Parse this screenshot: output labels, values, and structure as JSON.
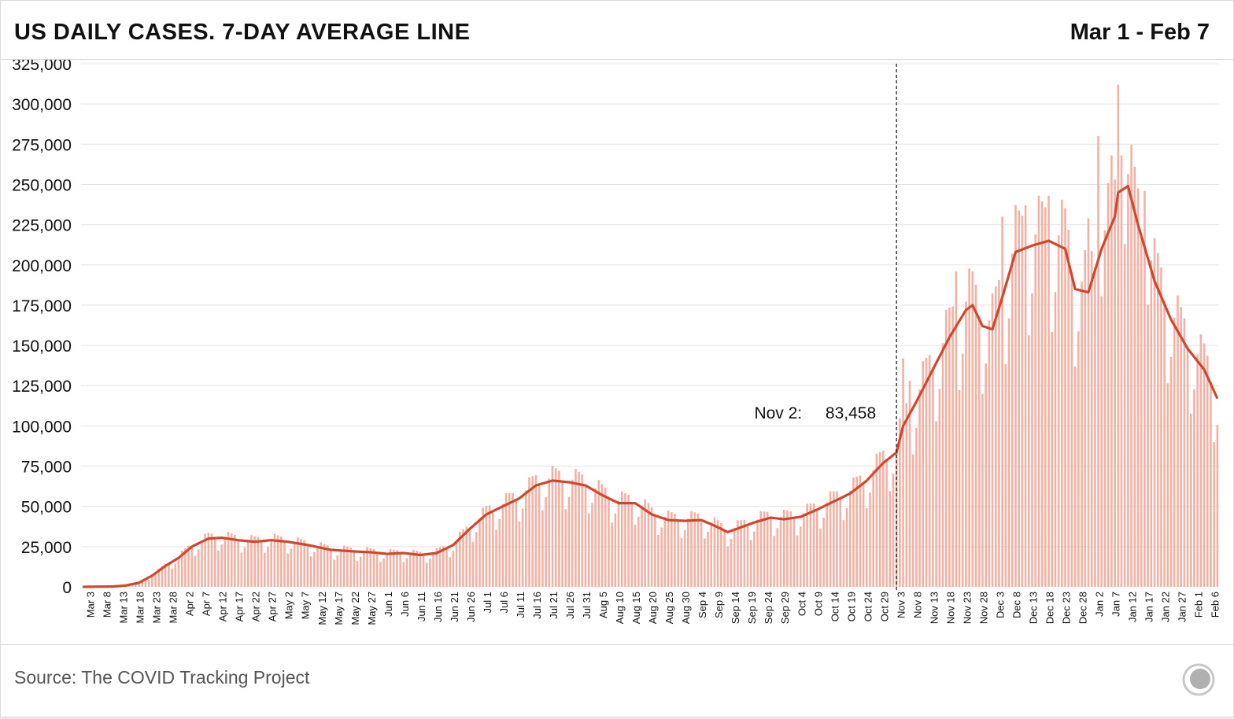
{
  "header": {
    "title": "US DAILY CASES. 7-DAY AVERAGE LINE",
    "range": "Mar 1 - Feb 7"
  },
  "footer": {
    "source": "Source: The COVID Tracking Project",
    "logo_icon": "ctp-logo-icon"
  },
  "colors": {
    "bar": "#f0b2a4",
    "line": "#d0472f",
    "grid": "#e4e4e4",
    "text": "#111111"
  },
  "chart_data": {
    "type": "bar",
    "bar_unit": "daily new cases",
    "line_unit": "7-day average",
    "x_start": "2020-03-01",
    "x_end": "2021-02-07",
    "yticks": [
      "325,000",
      "300,000",
      "275,000",
      "250,000",
      "225,000",
      "200,000",
      "175,000",
      "150,000",
      "125,000",
      "100,000",
      "75,000",
      "50,000",
      "25,000",
      "0"
    ],
    "ylim": [
      0,
      325000
    ],
    "xticks": [
      "Mar 3",
      "Mar 8",
      "Mar 13",
      "Mar 18",
      "Mar 23",
      "Mar 28",
      "Apr 2",
      "Apr 7",
      "Apr 12",
      "Apr 17",
      "Apr 22",
      "Apr 27",
      "May 2",
      "May 7",
      "May 12",
      "May 17",
      "May 22",
      "May 27",
      "Jun 1",
      "Jun 6",
      "Jun 11",
      "Jun 16",
      "Jun 21",
      "Jun 26",
      "Jul 1",
      "Jul 6",
      "Jul 11",
      "Jul 16",
      "Jul 21",
      "Jul 26",
      "Jul 31",
      "Aug 5",
      "Aug 10",
      "Aug 15",
      "Aug 20",
      "Aug 25",
      "Aug 30",
      "Sep 4",
      "Sep 9",
      "Sep 14",
      "Sep 19",
      "Sep 24",
      "Sep 29",
      "Oct 4",
      "Oct 9",
      "Oct 14",
      "Oct 19",
      "Oct 24",
      "Oct 29",
      "Nov 3",
      "Nov 8",
      "Nov 13",
      "Nov 18",
      "Nov 23",
      "Nov 28",
      "Dec 3",
      "Dec 8",
      "Dec 13",
      "Dec 18",
      "Dec 23",
      "Dec 28",
      "Jan 2",
      "Jan 7",
      "Jan 12",
      "Jan 17",
      "Jan 22",
      "Jan 27",
      "Feb 1",
      "Feb 6"
    ],
    "grid": true,
    "annotation": {
      "date": "2020-11-02",
      "label": "Nov 2:",
      "value_label": "83,458",
      "value": 83458,
      "line_style": "dashed"
    },
    "avg_keypoints": [
      [
        "2020-03-01",
        0
      ],
      [
        "2020-03-10",
        200
      ],
      [
        "2020-03-14",
        800
      ],
      [
        "2020-03-18",
        2500
      ],
      [
        "2020-03-22",
        7000
      ],
      [
        "2020-03-26",
        13000
      ],
      [
        "2020-03-30",
        18000
      ],
      [
        "2020-04-03",
        25000
      ],
      [
        "2020-04-08",
        30000
      ],
      [
        "2020-04-12",
        30500
      ],
      [
        "2020-04-17",
        29000
      ],
      [
        "2020-04-22",
        28000
      ],
      [
        "2020-04-27",
        29000
      ],
      [
        "2020-05-02",
        28000
      ],
      [
        "2020-05-08",
        26000
      ],
      [
        "2020-05-15",
        23000
      ],
      [
        "2020-05-22",
        22000
      ],
      [
        "2020-05-27",
        21500
      ],
      [
        "2020-06-01",
        20500
      ],
      [
        "2020-06-06",
        21000
      ],
      [
        "2020-06-11",
        19800
      ],
      [
        "2020-06-16",
        21000
      ],
      [
        "2020-06-21",
        26000
      ],
      [
        "2020-06-26",
        36000
      ],
      [
        "2020-07-01",
        45000
      ],
      [
        "2020-07-06",
        50000
      ],
      [
        "2020-07-11",
        55000
      ],
      [
        "2020-07-16",
        63000
      ],
      [
        "2020-07-21",
        66000
      ],
      [
        "2020-07-26",
        65000
      ],
      [
        "2020-07-31",
        63000
      ],
      [
        "2020-08-05",
        57000
      ],
      [
        "2020-08-10",
        52000
      ],
      [
        "2020-08-15",
        52000
      ],
      [
        "2020-08-20",
        45000
      ],
      [
        "2020-08-25",
        41500
      ],
      [
        "2020-08-30",
        41000
      ],
      [
        "2020-09-04",
        41500
      ],
      [
        "2020-09-08",
        38000
      ],
      [
        "2020-09-12",
        34000
      ],
      [
        "2020-09-16",
        37000
      ],
      [
        "2020-09-20",
        40000
      ],
      [
        "2020-09-25",
        43000
      ],
      [
        "2020-09-29",
        42000
      ],
      [
        "2020-10-04",
        43500
      ],
      [
        "2020-10-09",
        48000
      ],
      [
        "2020-10-14",
        53000
      ],
      [
        "2020-10-19",
        58000
      ],
      [
        "2020-10-24",
        66000
      ],
      [
        "2020-10-29",
        77000
      ],
      [
        "2020-11-02",
        83458
      ],
      [
        "2020-11-04",
        100000
      ],
      [
        "2020-11-08",
        115000
      ],
      [
        "2020-11-13",
        135000
      ],
      [
        "2020-11-18",
        155000
      ],
      [
        "2020-11-23",
        172000
      ],
      [
        "2020-11-25",
        175000
      ],
      [
        "2020-11-28",
        162000
      ],
      [
        "2020-12-01",
        160000
      ],
      [
        "2020-12-04",
        180000
      ],
      [
        "2020-12-08",
        208000
      ],
      [
        "2020-12-13",
        212000
      ],
      [
        "2020-12-18",
        215000
      ],
      [
        "2020-12-23",
        210000
      ],
      [
        "2020-12-26",
        185000
      ],
      [
        "2020-12-30",
        183000
      ],
      [
        "2021-01-03",
        210000
      ],
      [
        "2021-01-07",
        230000
      ],
      [
        "2021-01-08",
        245000
      ],
      [
        "2021-01-11",
        249000
      ],
      [
        "2021-01-14",
        225000
      ],
      [
        "2021-01-19",
        190000
      ],
      [
        "2021-01-24",
        166000
      ],
      [
        "2021-01-29",
        148000
      ],
      [
        "2021-02-03",
        135000
      ],
      [
        "2021-02-07",
        117000
      ]
    ],
    "spike_days": [
      [
        "2020-11-04",
        142000
      ],
      [
        "2020-11-06",
        128000
      ],
      [
        "2020-11-20",
        196000
      ],
      [
        "2020-12-04",
        230000
      ],
      [
        "2020-12-11",
        237000
      ],
      [
        "2020-12-18",
        243000
      ],
      [
        "2020-12-30",
        229000
      ],
      [
        "2021-01-02",
        280000
      ],
      [
        "2021-01-08",
        312000
      ],
      [
        "2021-01-06",
        268000
      ],
      [
        "2021-01-09",
        268000
      ],
      [
        "2021-01-16",
        246000
      ]
    ]
  }
}
